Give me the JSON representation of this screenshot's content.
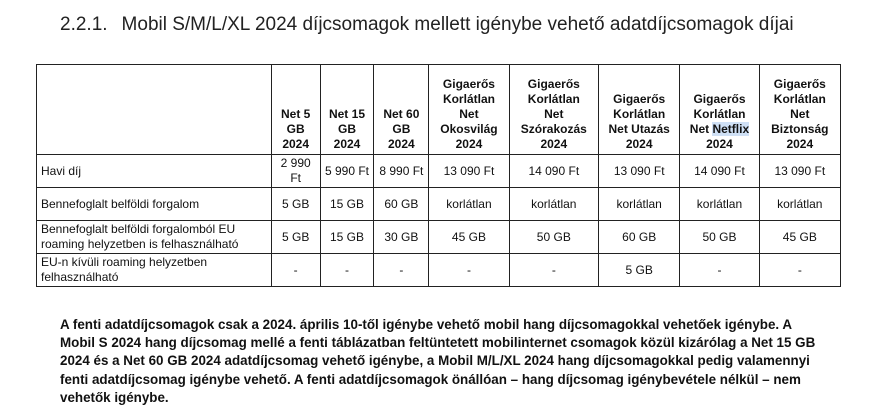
{
  "heading": {
    "number": "2.2.1.",
    "title": "Mobil S/M/L/XL 2024 díjcsomagok mellett igénybe vehető adatdíjcsomagok díjai"
  },
  "table": {
    "columns": [
      {
        "line1": "Net 5",
        "line2": "GB",
        "line3": "2024"
      },
      {
        "line1": "Net 15",
        "line2": "GB",
        "line3": "2024"
      },
      {
        "line1": "Net 60",
        "line2": "GB",
        "line3": "2024"
      },
      {
        "line1": "Gigaerős",
        "line2": "Korlátlan",
        "line3": "Net",
        "line4": "Okosvilág",
        "line5": "2024"
      },
      {
        "line1": "Gigaerős",
        "line2": "Korlátlan",
        "line3": "Net",
        "line4": "Szórakozás",
        "line5": "2024"
      },
      {
        "line1": "Gigaerős",
        "line2": "Korlátlan",
        "line3": "Net Utazás",
        "line4": "2024"
      },
      {
        "line1": "Gigaerős",
        "line2": "Korlátlan",
        "line3a": "Net ",
        "line3b": "Netflix",
        "line4": "2024"
      },
      {
        "line1": "Gigaerős",
        "line2": "Korlátlan",
        "line3": "Net",
        "line4": "Biztonság",
        "line5": "2024"
      }
    ],
    "rows": [
      {
        "label": "Havi díj",
        "cells": [
          "2 990 Ft",
          "5 990 Ft",
          "8 990 Ft",
          "13 090 Ft",
          "14 090 Ft",
          "13 090 Ft",
          "14 090 Ft",
          "13 090 Ft"
        ]
      },
      {
        "label": "Bennefoglalt belföldi forgalom",
        "cells": [
          "5 GB",
          "15 GB",
          "60 GB",
          "korlátlan",
          "korlátlan",
          "korlátlan",
          "korlátlan",
          "korlátlan"
        ]
      },
      {
        "label": "Bennefoglalt belföldi forgalomból EU roaming helyzetben is felhasználható",
        "cells": [
          "5 GB",
          "15 GB",
          "30 GB",
          "45 GB",
          "50 GB",
          "60 GB",
          "50 GB",
          "45 GB"
        ]
      },
      {
        "label": "EU-n kívüli roaming helyzetben felhasználható",
        "cells": [
          "-",
          "-",
          "-",
          "-",
          "-",
          "5 GB",
          "-",
          "-"
        ]
      }
    ]
  },
  "footnote": "A fenti adatdíjcsomagok csak a 2024. április 10-től igénybe vehető mobil hang díjcsomagokkal vehetőek igénybe. A Mobil S 2024 hang díjcsomag mellé a fenti táblázatban feltüntetett mobilinternet csomagok közül kizárólag a Net 15 GB 2024 és a Net 60 GB 2024 adatdíjcsomag vehető igénybe, a Mobil M/L/XL 2024 hang díjcsomagokkal pedig valamennyi fenti adatdíjcsomag igénybe vehető. A fenti adatdíjcsomagok önállóan – hang díjcsomag igénybevétele nélkül – nem vehetők igénybe."
}
